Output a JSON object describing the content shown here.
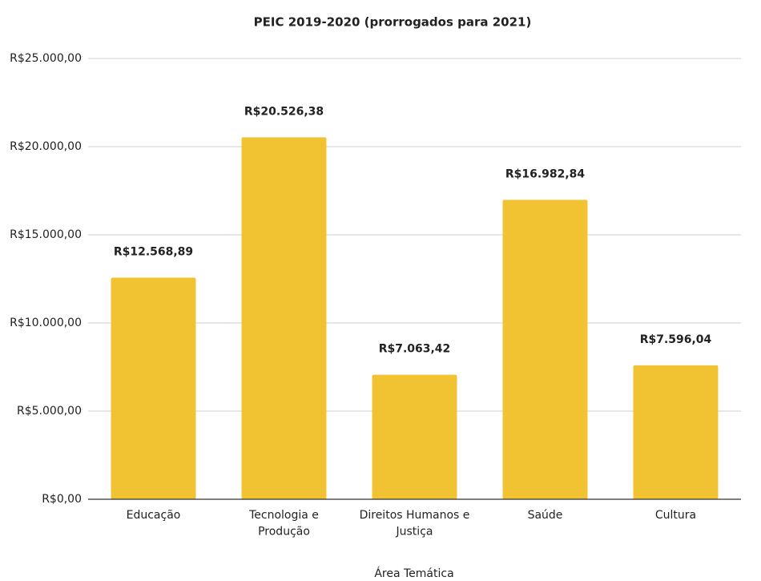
{
  "chart_data": {
    "type": "bar",
    "title": "PEIC 2019-2020 (prorrogados para 2021)",
    "x_label": "Área Temática",
    "categories": [
      "Educação",
      "Tecnologia e\nProdução",
      "Direitos Humanos e\nJustiça",
      "Saúde",
      "Cultura"
    ],
    "values": [
      12568.89,
      20526.38,
      7063.42,
      16982.84,
      7596.04
    ],
    "value_labels": [
      "R$12.568,89",
      "R$20.526,38",
      "R$7.063,42",
      "R$16.982,84",
      "R$7.596,04"
    ],
    "color": "#f1c232",
    "ylim": [
      0,
      25000
    ],
    "yticks": [
      {
        "value": 0,
        "label": "R$0,00"
      },
      {
        "value": 5000,
        "label": "R$5.000,00"
      },
      {
        "value": 10000,
        "label": "R$10.000,00"
      },
      {
        "value": 15000,
        "label": "R$15.000,00"
      },
      {
        "value": 20000,
        "label": "R$20.000,00"
      },
      {
        "value": 25000,
        "label": "R$25.000,00"
      }
    ],
    "grid": true
  }
}
